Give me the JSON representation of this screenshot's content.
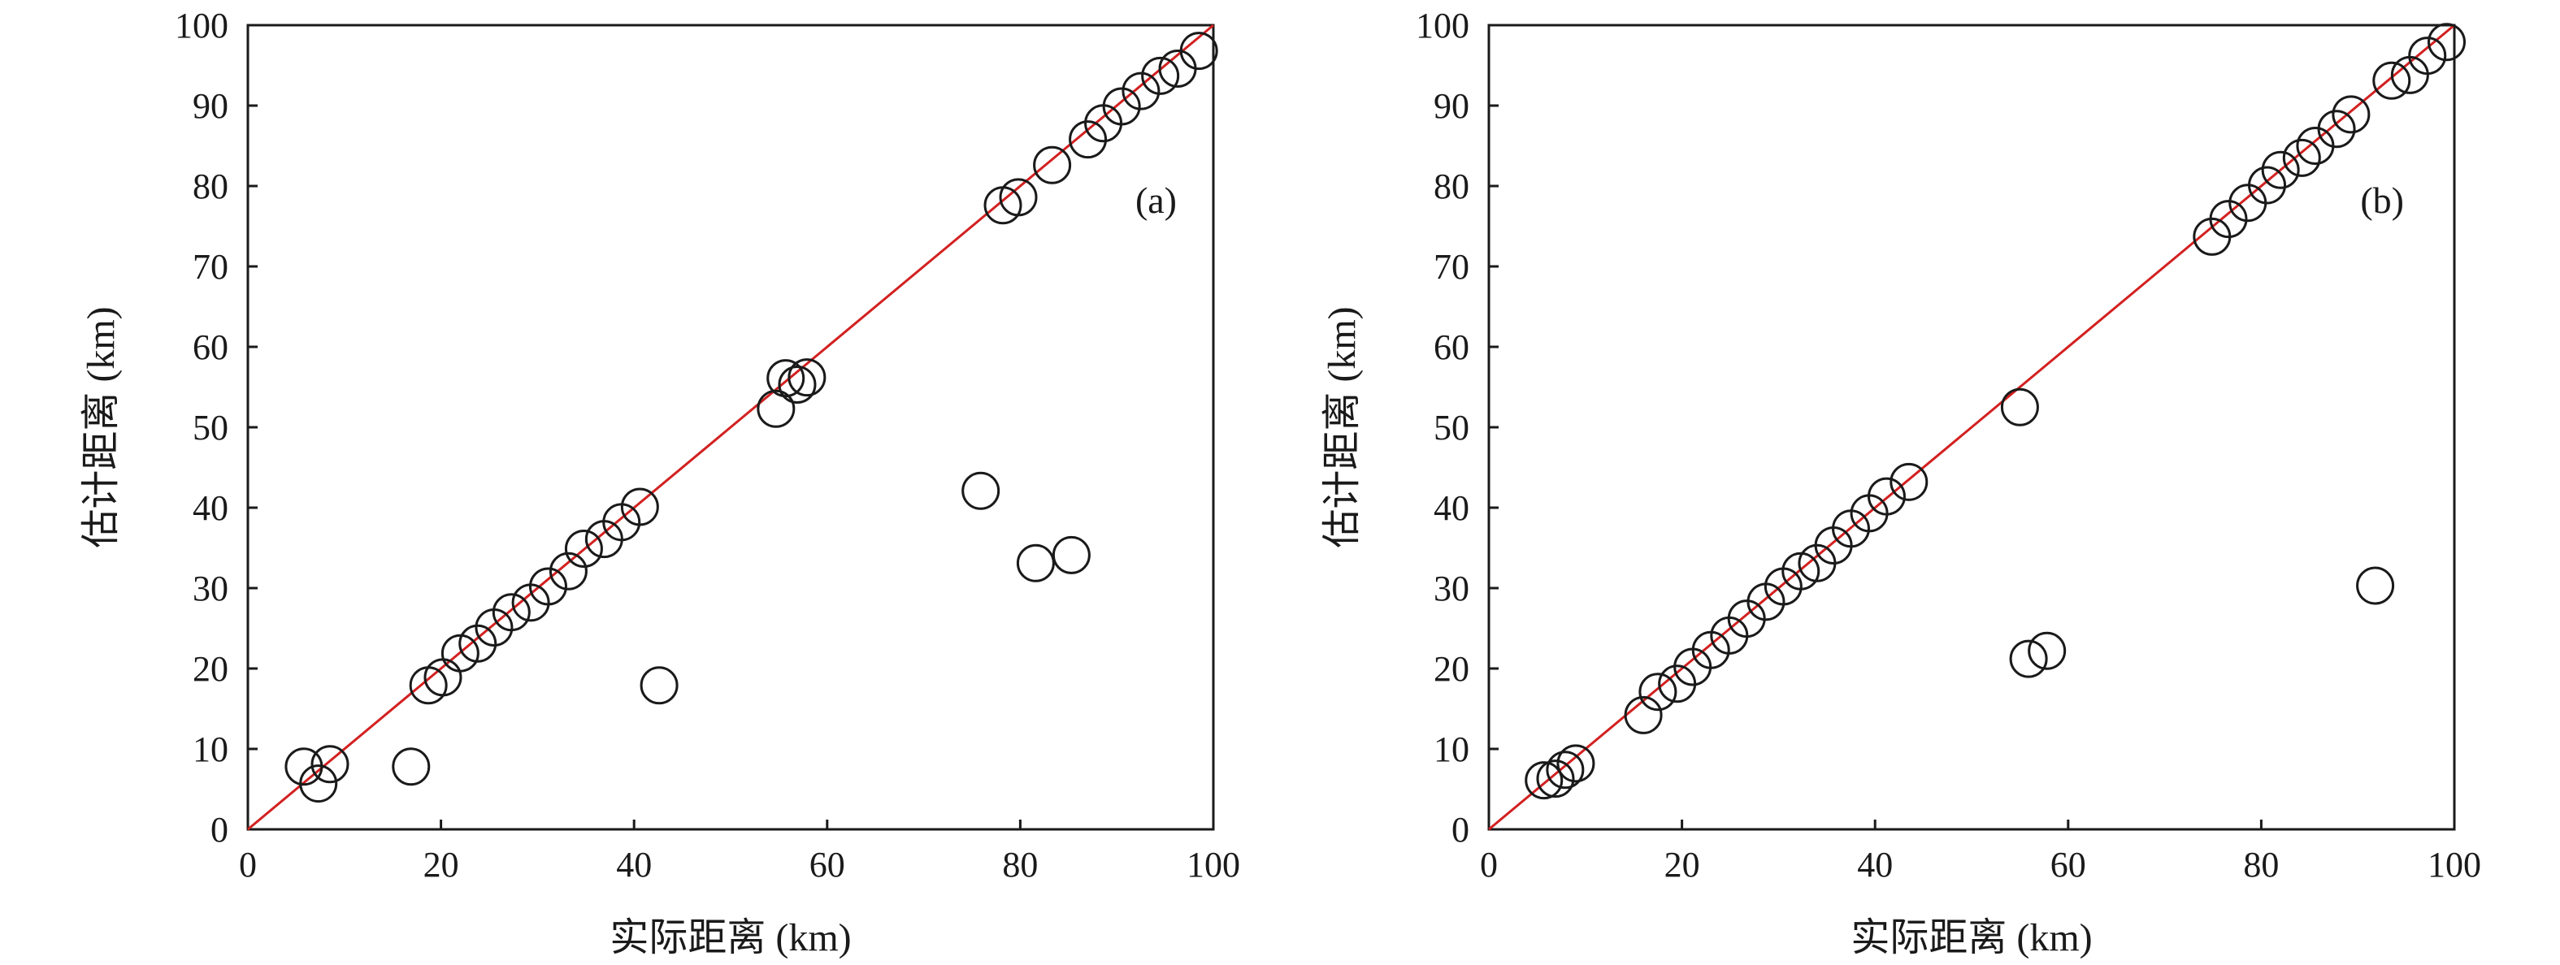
{
  "chart_data": [
    {
      "type": "scatter",
      "panel_label": "(a)",
      "xlabel": "实际距离 (km)",
      "ylabel": "估计距离 (km)",
      "xlim": [
        0,
        100
      ],
      "ylim": [
        0,
        100
      ],
      "xticks": [
        0,
        20,
        40,
        60,
        80,
        100
      ],
      "yticks": [
        0,
        10,
        20,
        30,
        40,
        50,
        60,
        70,
        80,
        90,
        100
      ],
      "grid": false,
      "marker": "open-circle",
      "reference_line": {
        "type": "y=x",
        "color": "#d32020"
      },
      "points": [
        [
          5.8,
          7.8
        ],
        [
          7.3,
          5.7
        ],
        [
          8.5,
          8.1
        ],
        [
          16.9,
          7.8
        ],
        [
          18.7,
          17.9
        ],
        [
          20.2,
          18.9
        ],
        [
          22.0,
          21.9
        ],
        [
          23.8,
          23.1
        ],
        [
          25.5,
          25.1
        ],
        [
          27.3,
          27.0
        ],
        [
          29.3,
          28.2
        ],
        [
          31.1,
          30.2
        ],
        [
          33.2,
          32.1
        ],
        [
          34.8,
          34.9
        ],
        [
          36.9,
          36.1
        ],
        [
          38.7,
          38.2
        ],
        [
          40.6,
          40.1
        ],
        [
          42.6,
          17.9
        ],
        [
          54.7,
          52.3
        ],
        [
          55.7,
          56.1
        ],
        [
          56.9,
          55.3
        ],
        [
          57.9,
          56.2
        ],
        [
          75.9,
          42.1
        ],
        [
          78.2,
          77.6
        ],
        [
          79.8,
          78.6
        ],
        [
          81.6,
          33.1
        ],
        [
          83.3,
          82.6
        ],
        [
          85.3,
          34.1
        ],
        [
          87.0,
          85.8
        ],
        [
          88.6,
          87.8
        ],
        [
          90.5,
          89.9
        ],
        [
          92.5,
          91.8
        ],
        [
          94.5,
          93.7
        ],
        [
          96.3,
          94.6
        ],
        [
          98.5,
          96.8
        ]
      ]
    },
    {
      "type": "scatter",
      "panel_label": "(b)",
      "xlabel": "实际距离 (km)",
      "ylabel": "估计距离 (km)",
      "xlim": [
        0,
        100
      ],
      "ylim": [
        0,
        100
      ],
      "xticks": [
        0,
        20,
        40,
        60,
        80,
        100
      ],
      "yticks": [
        0,
        10,
        20,
        30,
        40,
        50,
        60,
        70,
        80,
        90,
        100
      ],
      "grid": false,
      "marker": "open-circle",
      "reference_line": {
        "type": "y=x",
        "color": "#d32020"
      },
      "points": [
        [
          5.7,
          6.1
        ],
        [
          6.9,
          6.3
        ],
        [
          7.9,
          7.4
        ],
        [
          9.0,
          8.2
        ],
        [
          16.0,
          14.2
        ],
        [
          17.5,
          17.1
        ],
        [
          19.5,
          18.1
        ],
        [
          21.1,
          20.2
        ],
        [
          23.0,
          22.3
        ],
        [
          24.9,
          24.1
        ],
        [
          26.7,
          26.2
        ],
        [
          28.7,
          28.3
        ],
        [
          30.5,
          30.2
        ],
        [
          32.3,
          32.1
        ],
        [
          34.0,
          33.1
        ],
        [
          35.7,
          35.3
        ],
        [
          37.5,
          37.4
        ],
        [
          39.4,
          39.3
        ],
        [
          41.2,
          41.4
        ],
        [
          43.5,
          43.2
        ],
        [
          55.0,
          52.5
        ],
        [
          55.9,
          21.2
        ],
        [
          57.8,
          22.2
        ],
        [
          74.9,
          73.7
        ],
        [
          76.6,
          75.9
        ],
        [
          78.6,
          77.9
        ],
        [
          80.6,
          80.1
        ],
        [
          82.0,
          82.0
        ],
        [
          84.2,
          83.5
        ],
        [
          85.6,
          85.0
        ],
        [
          87.8,
          87.1
        ],
        [
          89.3,
          88.9
        ],
        [
          91.8,
          30.3
        ],
        [
          93.5,
          93.1
        ],
        [
          95.4,
          93.8
        ],
        [
          97.2,
          96.2
        ],
        [
          99.2,
          97.9
        ]
      ]
    }
  ]
}
